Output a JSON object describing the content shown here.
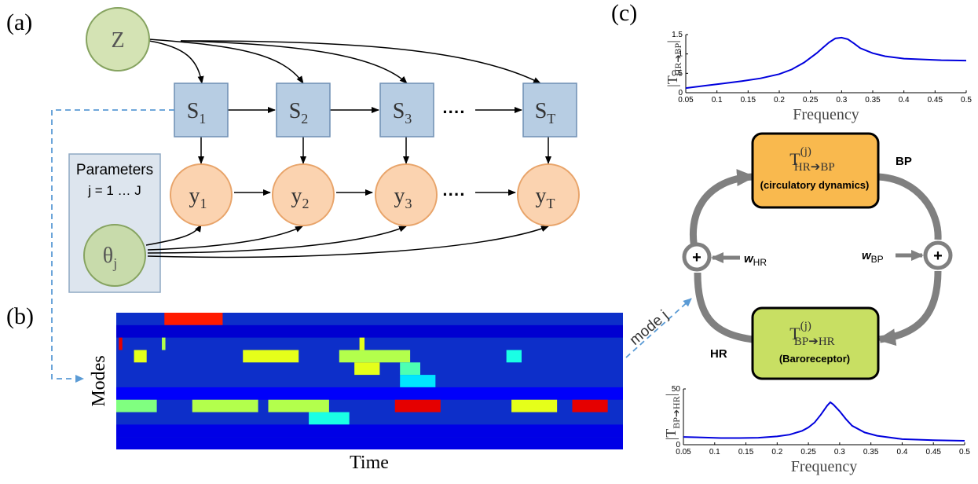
{
  "panels": {
    "a": "(a)",
    "b": "(b)",
    "c": "(c)"
  },
  "graphical_model": {
    "latent": "Z",
    "states": [
      {
        "base": "S",
        "sub": "1"
      },
      {
        "base": "S",
        "sub": "2"
      },
      {
        "base": "S",
        "sub": "3"
      },
      {
        "base": "S",
        "sub": "T"
      }
    ],
    "observations": [
      {
        "base": "y",
        "sub": "1"
      },
      {
        "base": "y",
        "sub": "2"
      },
      {
        "base": "y",
        "sub": "3"
      },
      {
        "base": "y",
        "sub": "T"
      }
    ],
    "ellipsis": "····",
    "plate_title": "Parameters",
    "plate_range": "j = 1 … J",
    "theta": {
      "base": "θ",
      "sub": "j"
    }
  },
  "heatmap": {
    "ylabel": "Modes",
    "xlabel": "Time",
    "bars": [
      {
        "row": 0,
        "start": 0.095,
        "end": 0.21,
        "level": 0.85
      },
      {
        "row": 1,
        "start": 0.0,
        "end": 1.0,
        "level": 0.08
      },
      {
        "row": 2,
        "start": 0.005,
        "end": 0.012,
        "level": 0.9
      },
      {
        "row": 2,
        "start": 0.09,
        "end": 0.097,
        "level": 0.55
      },
      {
        "row": 2,
        "start": 0.48,
        "end": 0.49,
        "level": 0.6
      },
      {
        "row": 3,
        "start": 0.035,
        "end": 0.06,
        "level": 0.6
      },
      {
        "row": 3,
        "start": 0.25,
        "end": 0.36,
        "level": 0.6
      },
      {
        "row": 3,
        "start": 0.44,
        "end": 0.58,
        "level": 0.55
      },
      {
        "row": 3,
        "start": 0.77,
        "end": 0.8,
        "level": 0.4
      },
      {
        "row": 4,
        "start": 0.47,
        "end": 0.52,
        "level": 0.6
      },
      {
        "row": 4,
        "start": 0.56,
        "end": 0.6,
        "level": 0.45
      },
      {
        "row": 5,
        "start": 0.56,
        "end": 0.63,
        "level": 0.35
      },
      {
        "row": 6,
        "start": 0.0,
        "end": 1.0,
        "level": 0.12
      },
      {
        "row": 7,
        "start": 0.0,
        "end": 0.08,
        "level": 0.5
      },
      {
        "row": 7,
        "start": 0.15,
        "end": 0.28,
        "level": 0.55
      },
      {
        "row": 7,
        "start": 0.3,
        "end": 0.42,
        "level": 0.55
      },
      {
        "row": 7,
        "start": 0.55,
        "end": 0.64,
        "level": 0.9
      },
      {
        "row": 7,
        "start": 0.78,
        "end": 0.87,
        "level": 0.6
      },
      {
        "row": 7,
        "start": 0.9,
        "end": 0.97,
        "level": 0.9
      },
      {
        "row": 8,
        "start": 0.38,
        "end": 0.46,
        "level": 0.4
      },
      {
        "row": 9,
        "start": 0.0,
        "end": 1.0,
        "level": 0.1
      },
      {
        "row": 10,
        "start": 0.0,
        "end": 1.0,
        "level": 0.1
      }
    ]
  },
  "feedback": {
    "top_block": {
      "base": "T",
      "sup": "(j)",
      "sub": "HR➔BP",
      "desc": "(circulatory dynamics)"
    },
    "bottom_block": {
      "base": "T",
      "sup": "(j)",
      "sub": "BP➔HR",
      "desc": "(Baroreceptor)"
    },
    "bp_label": "BP",
    "hr_label": "HR",
    "w_hr": {
      "base": "w",
      "sub": "HR"
    },
    "w_bp": {
      "base": "w",
      "sub": "BP"
    },
    "plus": "+",
    "mode_label": "mode j"
  },
  "chart_data": [
    {
      "type": "line",
      "ylabel_base": "T",
      "ylabel_sub": "HR➔BP",
      "xlabel": "Frequency",
      "xlim": [
        0.05,
        0.5
      ],
      "ylim": [
        0,
        1.5
      ],
      "xticks": [
        "0.05",
        "0.1",
        "0.15",
        "0.2",
        "0.25",
        "0.3",
        "0.35",
        "0.4",
        "0.45",
        "0.5"
      ],
      "yticks": [
        "0",
        "0.5",
        "1",
        "1.5"
      ],
      "color": "#0000dd",
      "series": [
        {
          "x": [
            0.05,
            0.08,
            0.11,
            0.14,
            0.17,
            0.2,
            0.22,
            0.24,
            0.26,
            0.27,
            0.28,
            0.29,
            0.3,
            0.31,
            0.32,
            0.33,
            0.35,
            0.37,
            0.4,
            0.43,
            0.46,
            0.5
          ],
          "y": [
            0.12,
            0.18,
            0.24,
            0.3,
            0.37,
            0.48,
            0.6,
            0.78,
            1.02,
            1.16,
            1.3,
            1.4,
            1.42,
            1.38,
            1.27,
            1.15,
            1.02,
            0.94,
            0.88,
            0.86,
            0.84,
            0.83
          ]
        }
      ]
    },
    {
      "type": "line",
      "ylabel_base": "T",
      "ylabel_sub": "BP➔HR",
      "xlabel": "Frequency",
      "xlim": [
        0.05,
        0.5
      ],
      "ylim": [
        0,
        50
      ],
      "xticks": [
        "0.05",
        "0.1",
        "0.15",
        "0.2",
        "0.25",
        "0.3",
        "0.35",
        "0.4",
        "0.45",
        "0.5"
      ],
      "yticks": [
        "0",
        "50"
      ],
      "color": "#0000dd",
      "series": [
        {
          "x": [
            0.05,
            0.08,
            0.11,
            0.14,
            0.17,
            0.2,
            0.22,
            0.24,
            0.25,
            0.26,
            0.27,
            0.28,
            0.285,
            0.29,
            0.3,
            0.31,
            0.32,
            0.34,
            0.36,
            0.4,
            0.45,
            0.5
          ],
          "y": [
            7,
            6.5,
            6,
            6,
            6.3,
            7.5,
            9,
            12.5,
            15.5,
            20,
            27,
            35,
            38,
            36,
            30,
            23,
            17,
            11,
            8,
            5,
            4,
            3.5
          ]
        }
      ]
    }
  ]
}
